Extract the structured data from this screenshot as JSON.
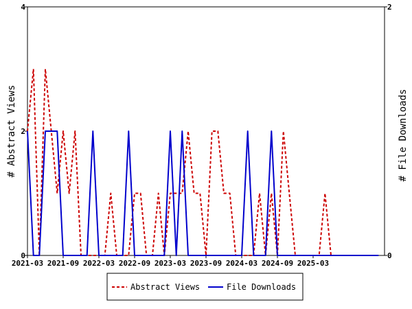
{
  "chart_data": {
    "type": "line",
    "x_ticks": [
      "2021-03",
      "2021-09",
      "2022-03",
      "2022-09",
      "2023-03",
      "2023-09",
      "2024-03",
      "2024-09",
      "2025-03"
    ],
    "x_range": [
      "2021-03",
      "2026-03"
    ],
    "y_left": {
      "label": "# Abstract Views",
      "ticks": [
        "0",
        "2",
        "4"
      ],
      "range": [
        0,
        4
      ]
    },
    "y_right": {
      "label": "# File Downloads",
      "ticks": [
        "0",
        "2"
      ],
      "range": [
        0,
        2
      ]
    },
    "grid": false,
    "legend_position": "bottom",
    "series": [
      {
        "name": "Abstract Views",
        "axis": "left",
        "color": "#cc0000",
        "style": "dashed",
        "values": [
          [
            "2021-03",
            2
          ],
          [
            "2021-04",
            3
          ],
          [
            "2021-05",
            0
          ],
          [
            "2021-06",
            3
          ],
          [
            "2021-07",
            2
          ],
          [
            "2021-08",
            1
          ],
          [
            "2021-09",
            2
          ],
          [
            "2021-10",
            1
          ],
          [
            "2021-11",
            2
          ],
          [
            "2021-12",
            0
          ],
          [
            "2022-01",
            0
          ],
          [
            "2022-02",
            0
          ],
          [
            "2022-03",
            0
          ],
          [
            "2022-04",
            0
          ],
          [
            "2022-05",
            1
          ],
          [
            "2022-06",
            0
          ],
          [
            "2022-07",
            0
          ],
          [
            "2022-08",
            0
          ],
          [
            "2022-09",
            1
          ],
          [
            "2022-10",
            1
          ],
          [
            "2022-11",
            0
          ],
          [
            "2022-12",
            0
          ],
          [
            "2023-01",
            1
          ],
          [
            "2023-02",
            0
          ],
          [
            "2023-03",
            1
          ],
          [
            "2023-04",
            1
          ],
          [
            "2023-05",
            1
          ],
          [
            "2023-06",
            2
          ],
          [
            "2023-07",
            1
          ],
          [
            "2023-08",
            1
          ],
          [
            "2023-09",
            0
          ],
          [
            "2023-10",
            2
          ],
          [
            "2023-11",
            2
          ],
          [
            "2023-12",
            1
          ],
          [
            "2024-01",
            1
          ],
          [
            "2024-02",
            0
          ],
          [
            "2024-03",
            0
          ],
          [
            "2024-04",
            0
          ],
          [
            "2024-05",
            0
          ],
          [
            "2024-06",
            1
          ],
          [
            "2024-07",
            0
          ],
          [
            "2024-08",
            1
          ],
          [
            "2024-09",
            0
          ],
          [
            "2024-10",
            2
          ],
          [
            "2024-11",
            1
          ],
          [
            "2024-12",
            0
          ],
          [
            "2025-01",
            0
          ],
          [
            "2025-02",
            0
          ],
          [
            "2025-03",
            0
          ],
          [
            "2025-04",
            0
          ],
          [
            "2025-05",
            1
          ],
          [
            "2025-06",
            0
          ],
          [
            "2025-07",
            0
          ],
          [
            "2025-08",
            0
          ],
          [
            "2025-09",
            0
          ],
          [
            "2025-10",
            0
          ],
          [
            "2025-11",
            0
          ],
          [
            "2025-12",
            0
          ],
          [
            "2026-01",
            0
          ],
          [
            "2026-02",
            0
          ]
        ]
      },
      {
        "name": "File Downloads",
        "axis": "right",
        "color": "#0000cc",
        "style": "solid",
        "values": [
          [
            "2021-03",
            1
          ],
          [
            "2021-04",
            0
          ],
          [
            "2021-05",
            0
          ],
          [
            "2021-06",
            1
          ],
          [
            "2021-07",
            1
          ],
          [
            "2021-08",
            1
          ],
          [
            "2021-09",
            0
          ],
          [
            "2021-10",
            0
          ],
          [
            "2021-11",
            0
          ],
          [
            "2021-12",
            0
          ],
          [
            "2022-01",
            0
          ],
          [
            "2022-02",
            1
          ],
          [
            "2022-03",
            0
          ],
          [
            "2022-04",
            0
          ],
          [
            "2022-05",
            0
          ],
          [
            "2022-06",
            0
          ],
          [
            "2022-07",
            0
          ],
          [
            "2022-08",
            1
          ],
          [
            "2022-09",
            0
          ],
          [
            "2022-10",
            0
          ],
          [
            "2022-11",
            0
          ],
          [
            "2022-12",
            0
          ],
          [
            "2023-01",
            0
          ],
          [
            "2023-02",
            0
          ],
          [
            "2023-03",
            1
          ],
          [
            "2023-04",
            0
          ],
          [
            "2023-05",
            1
          ],
          [
            "2023-06",
            0
          ],
          [
            "2023-07",
            0
          ],
          [
            "2023-08",
            0
          ],
          [
            "2023-09",
            0
          ],
          [
            "2023-10",
            0
          ],
          [
            "2023-11",
            0
          ],
          [
            "2023-12",
            0
          ],
          [
            "2024-01",
            0
          ],
          [
            "2024-02",
            0
          ],
          [
            "2024-03",
            0
          ],
          [
            "2024-04",
            1
          ],
          [
            "2024-05",
            0
          ],
          [
            "2024-06",
            0
          ],
          [
            "2024-07",
            0
          ],
          [
            "2024-08",
            1
          ],
          [
            "2024-09",
            0
          ],
          [
            "2024-10",
            0
          ],
          [
            "2024-11",
            0
          ],
          [
            "2024-12",
            0
          ],
          [
            "2025-01",
            0
          ],
          [
            "2025-02",
            0
          ],
          [
            "2025-03",
            0
          ],
          [
            "2025-04",
            0
          ],
          [
            "2025-05",
            0
          ],
          [
            "2025-06",
            0
          ],
          [
            "2025-07",
            0
          ],
          [
            "2025-08",
            0
          ],
          [
            "2025-09",
            0
          ],
          [
            "2025-10",
            0
          ],
          [
            "2025-11",
            0
          ],
          [
            "2025-12",
            0
          ],
          [
            "2026-01",
            0
          ],
          [
            "2026-02",
            0
          ]
        ]
      }
    ]
  }
}
